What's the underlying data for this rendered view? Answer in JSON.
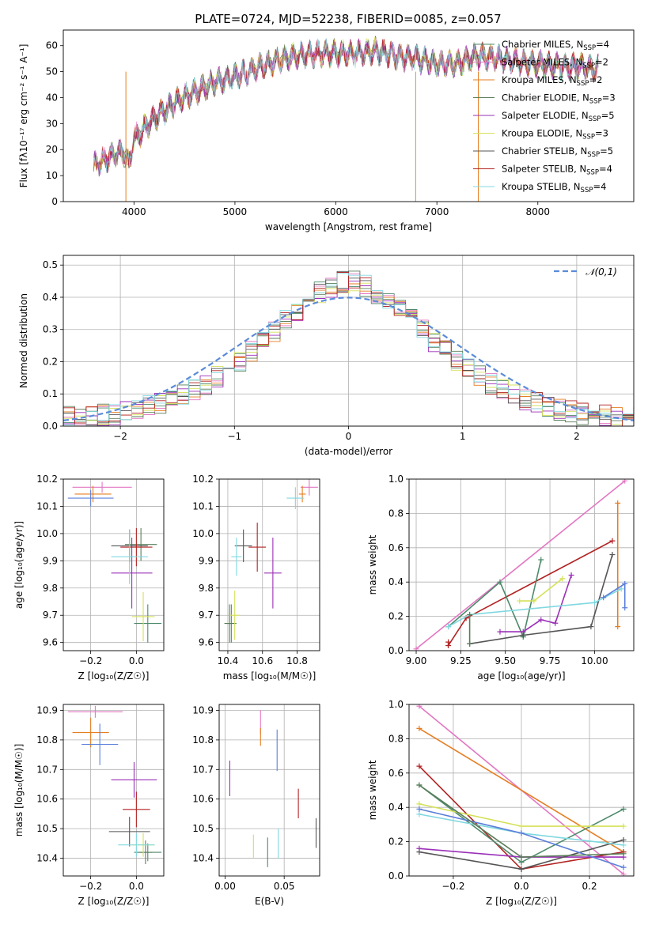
{
  "figure_title": "PLATE=0724, MJD=52238, FIBERID=0085, z=0.057",
  "series": [
    {
      "name": "Chabrier MILES, N",
      "sub": "SSP",
      "n": "=4",
      "color": "#4d8a6b"
    },
    {
      "name": "Salpeter MILES, N",
      "sub": "SSP",
      "n": "=2",
      "color": "#e377c2"
    },
    {
      "name": "Kroupa MILES, N",
      "sub": "SSP",
      "n": "=2",
      "color": "#e67e22"
    },
    {
      "name": "Chabrier ELODIE, N",
      "sub": "SSP",
      "n": "=3",
      "color": "#5a7d5a"
    },
    {
      "name": "Salpeter ELODIE, N",
      "sub": "SSP",
      "n": "=5",
      "color": "#9b30b8"
    },
    {
      "name": "Kroupa ELODIE, N",
      "sub": "SSP",
      "n": "=3",
      "color": "#d4e157"
    },
    {
      "name": "Chabrier STELIB, N",
      "sub": "SSP",
      "n": "=5",
      "color": "#555555"
    },
    {
      "name": "Salpeter STELIB, N",
      "sub": "SSP",
      "n": "=4",
      "color": "#b22222"
    },
    {
      "name": "Kroupa STELIB, N",
      "sub": "SSP",
      "n": "=4",
      "color": "#80d8e0"
    }
  ],
  "chart_data": [
    {
      "id": "spectrum",
      "type": "line",
      "xlabel": "wavelength [Angstrom, rest frame]",
      "ylabel": "Flux [fλ10⁻¹⁷ erg cm⁻² s⁻¹ A⁻¹]",
      "xlim": [
        3300,
        8950
      ],
      "ylim": [
        0,
        66
      ],
      "xticks": [
        4000,
        5000,
        6000,
        7000,
        8000
      ],
      "yticks": [
        0,
        10,
        20,
        30,
        40,
        50,
        60
      ],
      "continuum": [
        [
          3600,
          14
        ],
        [
          3700,
          16
        ],
        [
          3800,
          18
        ],
        [
          3900,
          19
        ],
        [
          3950,
          14
        ],
        [
          4000,
          24
        ],
        [
          4200,
          32
        ],
        [
          4400,
          38
        ],
        [
          4600,
          42
        ],
        [
          4800,
          46
        ],
        [
          5000,
          48
        ],
        [
          5200,
          51
        ],
        [
          5400,
          54
        ],
        [
          5600,
          56
        ],
        [
          5800,
          57
        ],
        [
          6000,
          57
        ],
        [
          6200,
          57
        ],
        [
          6400,
          58
        ],
        [
          6600,
          56
        ],
        [
          6800,
          55
        ],
        [
          7000,
          53
        ],
        [
          7200,
          53
        ],
        [
          7400,
          56
        ],
        [
          7600,
          55
        ],
        [
          7800,
          54
        ],
        [
          8000,
          53
        ],
        [
          8200,
          52
        ],
        [
          8400,
          52
        ],
        [
          8600,
          51
        ]
      ],
      "spikes": [
        3920,
        6790,
        7410
      ],
      "grid": false
    },
    {
      "id": "residuals",
      "type": "histogram",
      "xlabel": "(data-model)/error",
      "ylabel": "Normed distribution",
      "xlim": [
        -2.5,
        2.5
      ],
      "ylim": [
        0,
        0.53
      ],
      "xticks": [
        -2,
        -1,
        0,
        1,
        2
      ],
      "yticks": [
        0,
        0.1,
        0.2,
        0.3,
        0.4,
        0.5
      ],
      "bin_width": 0.1,
      "reference_curve": "𝒩(0,1)",
      "grid": true
    },
    {
      "id": "age_vs_Z",
      "type": "errorbar",
      "xlabel": "Z [log₁₀(Z/Z☉)]",
      "ylabel": "age  [log₁₀(age/yr)]",
      "xlim": [
        -0.32,
        0.12
      ],
      "ylim": [
        9.57,
        10.2
      ],
      "xticks": [
        -0.2,
        0.0
      ],
      "yticks": [
        9.6,
        9.7,
        9.8,
        9.9,
        10.0,
        10.1,
        10.2
      ],
      "points": [
        {
          "s": 0,
          "x": 0.05,
          "y": 9.67,
          "xe": 0.06,
          "ye": 0.07
        },
        {
          "s": 1,
          "x": -0.15,
          "y": 10.17,
          "xe": 0.13,
          "ye": 0.02
        },
        {
          "s": 2,
          "x": -0.19,
          "y": 10.145,
          "xe": 0.08,
          "ye": 0.03
        },
        {
          "s": 3,
          "x": 0.02,
          "y": 9.96,
          "xe": 0.07,
          "ye": 0.06
        },
        {
          "s": 4,
          "x": -0.02,
          "y": 9.855,
          "xe": 0.09,
          "ye": 0.13
        },
        {
          "s": 5,
          "x": 0.03,
          "y": 9.695,
          "xe": 0.05,
          "ye": 0.09
        },
        {
          "s": 6,
          "x": -0.03,
          "y": 9.955,
          "xe": 0.08,
          "ye": 0.06
        },
        {
          "s": 7,
          "x": 0.0,
          "y": 9.95,
          "xe": 0.07,
          "ye": 0.07
        },
        {
          "s": 8,
          "x": -0.03,
          "y": 9.915,
          "xe": 0.08,
          "ye": 0.1
        },
        {
          "s": 1,
          "x": -0.2,
          "y": 10.13,
          "xe": 0.1,
          "ye": 0.03
        }
      ]
    },
    {
      "id": "age_vs_mass",
      "type": "errorbar",
      "xlabel": "mass [log₁₀(M/M☉)]",
      "ylabel": "",
      "xlim": [
        10.35,
        10.93
      ],
      "ylim": [
        9.57,
        10.2
      ],
      "xticks": [
        10.4,
        10.6,
        10.8
      ],
      "yticks": [
        9.6,
        9.7,
        9.8,
        9.9,
        10.0,
        10.1,
        10.2
      ],
      "points": [
        {
          "s": 0,
          "x": 10.42,
          "y": 9.67,
          "xe": 0.03,
          "ye": 0.07
        },
        {
          "s": 1,
          "x": 10.87,
          "y": 10.17,
          "xe": 0.05,
          "ye": 0.03
        },
        {
          "s": 2,
          "x": 10.83,
          "y": 10.145,
          "xe": 0.02,
          "ye": 0.03
        },
        {
          "s": 3,
          "x": 10.41,
          "y": 9.67,
          "xe": 0.03,
          "ye": 0.07
        },
        {
          "s": 4,
          "x": 10.66,
          "y": 9.855,
          "xe": 0.05,
          "ye": 0.13
        },
        {
          "s": 5,
          "x": 10.44,
          "y": 9.7,
          "xe": 0.03,
          "ye": 0.09
        },
        {
          "s": 6,
          "x": 10.49,
          "y": 9.955,
          "xe": 0.05,
          "ye": 0.06
        },
        {
          "s": 7,
          "x": 10.57,
          "y": 9.95,
          "xe": 0.05,
          "ye": 0.09
        },
        {
          "s": 8,
          "x": 10.45,
          "y": 9.915,
          "xe": 0.03,
          "ye": 0.07
        },
        {
          "s": 8,
          "x": 10.79,
          "y": 10.13,
          "xe": 0.05,
          "ye": 0.04
        }
      ]
    },
    {
      "id": "mass_weight_vs_age",
      "type": "line",
      "xlabel": "age  [log₁₀(age/yr)]",
      "ylabel": "mass weight",
      "xlim": [
        8.96,
        10.22
      ],
      "ylim": [
        0,
        1
      ],
      "xticks": [
        9.0,
        9.25,
        9.5,
        9.75,
        10.0
      ],
      "yticks": [
        0.0,
        0.2,
        0.4,
        0.6,
        0.8,
        1.0
      ],
      "lines": [
        {
          "s": 1,
          "pts": [
            [
              9.0,
              0.01
            ],
            [
              10.17,
              0.99
            ]
          ]
        },
        {
          "s": 2,
          "pts": [
            [
              10.13,
              0.14
            ],
            [
              10.13,
              0.86
            ]
          ]
        },
        {
          "s": 7,
          "pts": [
            [
              9.18,
              0.05
            ],
            [
              9.18,
              0.03
            ],
            [
              9.28,
              0.19
            ],
            [
              10.1,
              0.64
            ]
          ]
        },
        {
          "s": 0,
          "pts": [
            [
              9.18,
              0.14
            ],
            [
              9.47,
              0.4
            ],
            [
              9.6,
              0.08
            ],
            [
              9.7,
              0.53
            ]
          ]
        },
        {
          "s": 5,
          "pts": [
            [
              9.58,
              0.29
            ],
            [
              9.66,
              0.29
            ],
            [
              9.82,
              0.42
            ]
          ]
        },
        {
          "s": 4,
          "pts": [
            [
              9.47,
              0.11
            ],
            [
              9.6,
              0.11
            ],
            [
              9.7,
              0.18
            ],
            [
              9.78,
              0.16
            ],
            [
              9.87,
              0.44
            ]
          ]
        },
        {
          "s": 6,
          "pts": [
            [
              9.3,
              0.04
            ],
            [
              9.6,
              0.09
            ],
            [
              9.98,
              0.14
            ],
            [
              10.1,
              0.56
            ]
          ]
        },
        {
          "s": 8,
          "pts": [
            [
              9.18,
              0.14
            ],
            [
              9.3,
              0.21
            ],
            [
              10.0,
              0.28
            ],
            [
              10.15,
              0.36
            ]
          ]
        },
        {
          "s": 3,
          "pts": [
            [
              9.3,
              0.04
            ],
            [
              9.3,
              0.21
            ]
          ]
        },
        {
          "s": 2,
          "pts": [
            [
              10.17,
              0.25
            ],
            [
              10.17,
              0.39
            ],
            [
              10.05,
              0.31
            ]
          ],
          "color_override": "#5b7fd9"
        }
      ]
    },
    {
      "id": "mass_vs_Z",
      "type": "errorbar",
      "xlabel": "Z [log₁₀(Z/Z☉)]",
      "ylabel": "mass [log₁₀(M/M☉)]",
      "xlim": [
        -0.32,
        0.12
      ],
      "ylim": [
        10.34,
        10.92
      ],
      "xticks": [
        -0.2,
        0.0
      ],
      "yticks": [
        10.4,
        10.5,
        10.6,
        10.7,
        10.8,
        10.9
      ],
      "points": [
        {
          "s": 0,
          "x": 0.05,
          "y": 10.42,
          "xe": 0.06,
          "ye": 0.03
        },
        {
          "s": 1,
          "x": -0.18,
          "y": 10.895,
          "xe": 0.12,
          "ye": 0.02
        },
        {
          "s": 2,
          "x": -0.2,
          "y": 10.825,
          "xe": 0.08,
          "ye": 0.05
        },
        {
          "s": 3,
          "x": 0.04,
          "y": 10.42,
          "xe": 0.03,
          "ye": 0.04
        },
        {
          "s": 4,
          "x": -0.01,
          "y": 10.665,
          "xe": 0.1,
          "ye": 0.06
        },
        {
          "s": 5,
          "x": 0.03,
          "y": 10.445,
          "xe": 0.05,
          "ye": 0.04
        },
        {
          "s": 6,
          "x": -0.03,
          "y": 10.49,
          "xe": 0.09,
          "ye": 0.05
        },
        {
          "s": 7,
          "x": 0.0,
          "y": 10.565,
          "xe": 0.06,
          "ye": 0.06
        },
        {
          "s": 8,
          "x": 0.0,
          "y": 10.445,
          "xe": 0.08,
          "ye": 0.04
        },
        {
          "s": 8,
          "x": -0.16,
          "y": 10.785,
          "xe": 0.08,
          "ye": 0.07
        }
      ]
    },
    {
      "id": "mass_vs_EBV",
      "type": "errorbar",
      "xlabel": "E(B-V)",
      "ylabel": "",
      "xlim": [
        -0.005,
        0.08
      ],
      "ylim": [
        10.34,
        10.92
      ],
      "xticks": [
        0.0,
        0.05
      ],
      "yticks": [
        10.4,
        10.5,
        10.6,
        10.7,
        10.8,
        10.9
      ],
      "points": [
        {
          "s": 0,
          "x": 0.036,
          "y": 10.42,
          "xe": 0.0,
          "ye": 0.05
        },
        {
          "s": 1,
          "x": 0.03,
          "y": 10.86,
          "xe": 0.0,
          "ye": 0.04
        },
        {
          "s": 2,
          "x": 0.03,
          "y": 10.81,
          "xe": 0.0,
          "ye": 0.03
        },
        {
          "s": 4,
          "x": 0.004,
          "y": 10.67,
          "xe": 0.0,
          "ye": 0.06
        },
        {
          "s": 5,
          "x": 0.024,
          "y": 10.44,
          "xe": 0.0,
          "ye": 0.04
        },
        {
          "s": 6,
          "x": 0.077,
          "y": 10.485,
          "xe": 0.0,
          "ye": 0.05
        },
        {
          "s": 7,
          "x": 0.062,
          "y": 10.585,
          "xe": 0.0,
          "ye": 0.05
        },
        {
          "s": 8,
          "x": 0.045,
          "y": 10.45,
          "xe": 0.0,
          "ye": 0.05
        },
        {
          "s": 8,
          "x": 0.044,
          "y": 10.765,
          "xe": 0.0,
          "ye": 0.07
        }
      ]
    },
    {
      "id": "mass_weight_vs_Z",
      "type": "line",
      "xlabel": "Z [log₁₀(Z/Z☉)]",
      "ylabel": "mass weight",
      "xlim": [
        -0.33,
        0.33
      ],
      "ylim": [
        0,
        1
      ],
      "xticks": [
        -0.2,
        0.0,
        0.2
      ],
      "yticks": [
        0.0,
        0.2,
        0.4,
        0.6,
        0.8,
        1.0
      ],
      "lines": [
        {
          "s": 1,
          "pts": [
            [
              -0.3,
              0.99
            ],
            [
              0.3,
              0.01
            ]
          ]
        },
        {
          "s": 2,
          "pts": [
            [
              -0.3,
              0.86
            ],
            [
              0.3,
              0.14
            ]
          ]
        },
        {
          "s": 7,
          "pts": [
            [
              -0.3,
              0.64
            ],
            [
              0.0,
              0.04
            ],
            [
              0.3,
              0.14
            ]
          ]
        },
        {
          "s": 0,
          "pts": [
            [
              -0.3,
              0.53
            ],
            [
              0.0,
              0.08
            ],
            [
              0.3,
              0.39
            ]
          ]
        },
        {
          "s": 5,
          "pts": [
            [
              -0.3,
              0.42
            ],
            [
              0.0,
              0.29
            ],
            [
              0.3,
              0.29
            ]
          ]
        },
        {
          "s": 4,
          "pts": [
            [
              -0.3,
              0.16
            ],
            [
              0.0,
              0.11
            ],
            [
              0.3,
              0.11
            ]
          ]
        },
        {
          "s": 6,
          "pts": [
            [
              -0.3,
              0.14
            ],
            [
              0.0,
              0.04
            ],
            [
              0.3,
              0.21
            ]
          ]
        },
        {
          "s": 8,
          "pts": [
            [
              -0.3,
              0.36
            ],
            [
              0.0,
              0.25
            ],
            [
              0.3,
              0.18
            ]
          ]
        },
        {
          "s": 2,
          "pts": [
            [
              -0.3,
              0.39
            ],
            [
              0.0,
              0.25
            ],
            [
              0.3,
              0.05
            ]
          ],
          "color_override": "#5b7fd9"
        },
        {
          "s": 3,
          "pts": [
            [
              -0.3,
              0.53
            ],
            [
              0.0,
              0.11
            ],
            [
              0.3,
              0.13
            ]
          ]
        }
      ]
    }
  ]
}
